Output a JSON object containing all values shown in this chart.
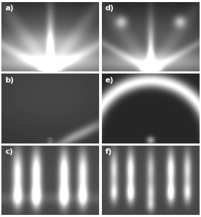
{
  "layout": {
    "rows": 3,
    "cols": 2,
    "figsize": [
      2.92,
      3.16
    ],
    "dpi": 100
  },
  "labels": [
    "a)",
    "b)",
    "c)",
    "d)",
    "e)",
    "f)"
  ],
  "label_color": "#ffffff",
  "label_fontsize": 8,
  "bg_level": 0.35
}
